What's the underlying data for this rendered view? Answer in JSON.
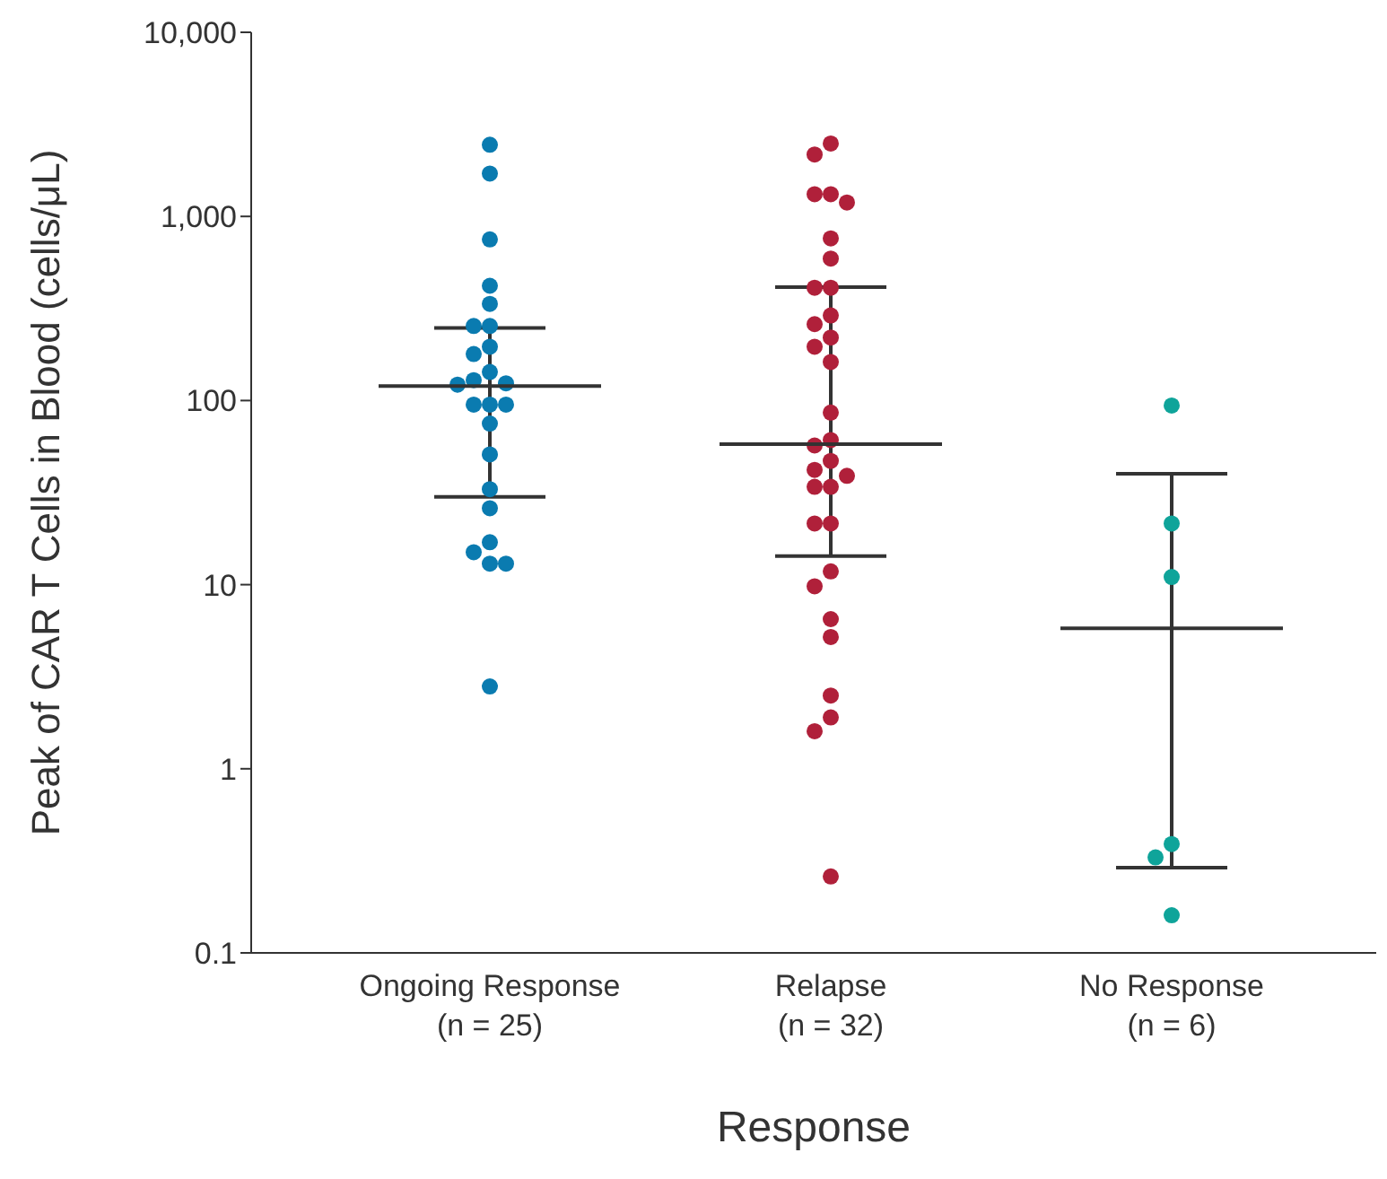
{
  "chart_data": {
    "type": "scatter",
    "xlabel": "Response",
    "ylabel": "Peak of CAR T Cells in Blood (cells/μL)",
    "categories": [
      "Ongoing Response\n(n = 25)",
      "Relapse\n(n = 32)",
      "No Response\n(n = 6)"
    ],
    "log": "y",
    "ylim": [
      0.1,
      10000
    ],
    "yticks": [
      0.1,
      1,
      10,
      100,
      {
        "value": 1000,
        "label": "1,000"
      },
      {
        "value": 10000,
        "label": "10,000"
      }
    ],
    "marker": "circle",
    "series": [
      {
        "color": "#0a7bb0",
        "x": [
          "Ongoing Response\n(n = 25)",
          "Ongoing Response\n(n = 25)",
          "Ongoing Response\n(n = 25)",
          "Ongoing Response\n(n = 25)",
          "Ongoing Response\n(n = 25)",
          "Ongoing Response\n(n = 25)",
          "Ongoing Response\n(n = 25)",
          "Ongoing Response\n(n = 25)",
          "Ongoing Response\n(n = 25)",
          "Ongoing Response\n(n = 25)",
          "Ongoing Response\n(n = 25)",
          "Ongoing Response\n(n = 25)",
          "Ongoing Response\n(n = 25)",
          "Ongoing Response\n(n = 25)",
          "Ongoing Response\n(n = 25)",
          "Ongoing Response\n(n = 25)",
          "Ongoing Response\n(n = 25)",
          "Ongoing Response\n(n = 25)",
          "Ongoing Response\n(n = 25)",
          "Ongoing Response\n(n = 25)",
          "Ongoing Response\n(n = 25)",
          "Ongoing Response\n(n = 25)",
          "Ongoing Response\n(n = 25)",
          "Ongoing Response\n(n = 25)",
          "Ongoing Response\n(n = 25)"
        ],
        "values": [
          2450,
          1710,
          750,
          420,
          335,
          254,
          254,
          196,
          179,
          143,
          129,
          124,
          122,
          95,
          95,
          95,
          75,
          51,
          33,
          26,
          17,
          15,
          13,
          13,
          2.8
        ]
      },
      {
        "color": "#b0203a",
        "x": [
          "Relapse\n(n = 32)",
          "Relapse\n(n = 32)",
          "Relapse\n(n = 32)",
          "Relapse\n(n = 32)",
          "Relapse\n(n = 32)",
          "Relapse\n(n = 32)",
          "Relapse\n(n = 32)",
          "Relapse\n(n = 32)",
          "Relapse\n(n = 32)",
          "Relapse\n(n = 32)",
          "Relapse\n(n = 32)",
          "Relapse\n(n = 32)",
          "Relapse\n(n = 32)",
          "Relapse\n(n = 32)",
          "Relapse\n(n = 32)",
          "Relapse\n(n = 32)",
          "Relapse\n(n = 32)",
          "Relapse\n(n = 32)",
          "Relapse\n(n = 32)",
          "Relapse\n(n = 32)",
          "Relapse\n(n = 32)",
          "Relapse\n(n = 32)",
          "Relapse\n(n = 32)",
          "Relapse\n(n = 32)",
          "Relapse\n(n = 32)",
          "Relapse\n(n = 32)",
          "Relapse\n(n = 32)",
          "Relapse\n(n = 32)",
          "Relapse\n(n = 32)",
          "Relapse\n(n = 32)",
          "Relapse\n(n = 32)",
          "Relapse\n(n = 32)"
        ],
        "values": [
          2490,
          2170,
          1320,
          1320,
          1190,
          760,
          590,
          410,
          410,
          290,
          260,
          220,
          196,
          162,
          86,
          61,
          57,
          47,
          42,
          39,
          34,
          34,
          21.5,
          21.5,
          11.8,
          9.8,
          6.5,
          5.2,
          2.5,
          1.9,
          1.6,
          0.26
        ]
      },
      {
        "color": "#0fa49a",
        "x": [
          "No Response\n(n = 6)",
          "No Response\n(n = 6)",
          "No Response\n(n = 6)",
          "No Response\n(n = 6)",
          "No Response\n(n = 6)",
          "No Response\n(n = 6)"
        ],
        "values": [
          94,
          21.5,
          11,
          0.39,
          0.33,
          0.16
        ]
      },
      {
        "type": "box",
        "color": "#333333",
        "boxes": [
          {
            "low": 30,
            "q1": 120,
            "median": 120,
            "q3": 120,
            "high": 248
          },
          {
            "low": 14.3,
            "q1": 58,
            "median": 58,
            "q3": 58,
            "high": 413
          },
          {
            "low": 0.29,
            "q1": 5.8,
            "median": 5.8,
            "q3": 5.8,
            "high": 40
          }
        ]
      }
    ]
  }
}
